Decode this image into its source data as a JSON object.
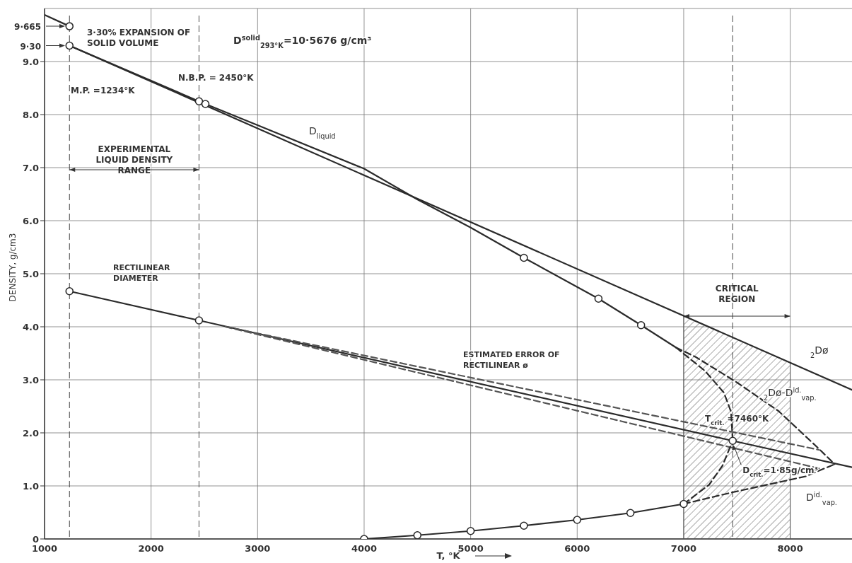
{
  "chart_data": {
    "type": "line",
    "xlabel": "T, °K",
    "ylabel": "DENSITY, g/cm3",
    "xlim": [
      1000,
      8580
    ],
    "ylim": [
      0,
      10
    ],
    "xticks": [
      1000,
      2000,
      3000,
      4000,
      5000,
      6000,
      7000,
      8000
    ],
    "yticks": [
      {
        "value": 0,
        "label": "0"
      },
      {
        "value": 1,
        "label": "1.0"
      },
      {
        "value": 2,
        "label": "2.0"
      },
      {
        "value": 3,
        "label": "3.0"
      },
      {
        "value": 4,
        "label": "4.0"
      },
      {
        "value": 5,
        "label": "5.0"
      },
      {
        "value": 6,
        "label": "6.0"
      },
      {
        "value": 7,
        "label": "7.0"
      },
      {
        "value": 8,
        "label": "8.0"
      },
      {
        "value": 9,
        "label": "9.0"
      }
    ],
    "grid": true,
    "marker": "none",
    "line_style": "solid",
    "series": [
      {
        "color": "#2b2b2b",
        "x": [
          1000,
          1234
        ],
        "values": [
          9.88,
          9.665
        ]
      },
      {
        "name": "$_{2}$Dø",
        "color": "#2b2b2b",
        "x": [
          1234,
          8580
        ],
        "values": [
          9.3,
          2.81
        ]
      },
      {
        "name": "D$_{liquid}$",
        "color": "#2b2b2b",
        "x": [
          1234,
          2450,
          2510,
          3000,
          4000,
          4500,
          5000,
          5500,
          6200,
          6600,
          6927
        ],
        "values": [
          9.3,
          8.25,
          8.2,
          7.8,
          6.98,
          6.4,
          5.87,
          5.3,
          4.53,
          4.03,
          3.61
        ]
      },
      {
        "color": "#2b2b2b",
        "line_style": "dashed",
        "x": [
          6927,
          7199,
          7377,
          7444,
          7460
        ],
        "values": [
          3.61,
          3.17,
          2.76,
          2.4,
          1.85
        ]
      },
      {
        "name": "$_{2}$Dø-D$^{id.}$$_{vap.}$",
        "color": "#2b2b2b",
        "line_style": "dashed",
        "x": [
          6927,
          7113,
          7500,
          7891,
          8248,
          8417
        ],
        "values": [
          3.61,
          3.43,
          2.95,
          2.41,
          1.74,
          1.41
        ]
      },
      {
        "name": "RECTILINEAR DIAMETER",
        "color": "#2b2b2b",
        "x": [
          1234,
          2450,
          7460,
          8580
        ],
        "values": [
          4.67,
          4.12,
          1.85,
          1.35
        ]
      },
      {
        "name": "ESTIMATED ERROR OF RECTILINEAR ø",
        "color": "#555555",
        "line_style": "dashed",
        "x": [
          2700,
          8270
        ],
        "values": [
          4.0,
          1.68
        ]
      },
      {
        "color": "#555555",
        "line_style": "dashed",
        "x": [
          2700,
          8270
        ],
        "values": [
          4.0,
          1.33
        ]
      },
      {
        "color": "#2b2b2b",
        "x": [
          4000,
          4500,
          5000,
          5500,
          6000,
          6500,
          7000
        ],
        "values": [
          0,
          0.07,
          0.15,
          0.25,
          0.36,
          0.49,
          0.66
        ]
      },
      {
        "name": "D$^{id.}$$_{vap.}$",
        "color": "#2b2b2b",
        "line_style": "dashed",
        "x": [
          7000,
          7460,
          8146,
          8417
        ],
        "values": [
          0.66,
          0.88,
          1.18,
          1.41
        ]
      },
      {
        "color": "#2b2b2b",
        "line_style": "dashed",
        "x": [
          7000,
          7238,
          7364,
          7460
        ],
        "values": [
          0.66,
          1.02,
          1.38,
          1.85
        ]
      },
      {
        "type": "scatter",
        "marker": "circle",
        "color": "#2b2b2b",
        "x": [
          1234,
          1234,
          2450,
          2510,
          5500,
          6200,
          6600,
          7460,
          4000,
          4500,
          5000,
          5500,
          6000,
          6500,
          7000,
          1234,
          2450
        ],
        "values": [
          9.665,
          9.3,
          8.25,
          8.2,
          5.3,
          4.53,
          4.03,
          1.85,
          0,
          0.07,
          0.15,
          0.25,
          0.36,
          0.49,
          0.66,
          4.67,
          4.12
        ]
      }
    ],
    "ref_lines": [
      {
        "axis": "x",
        "value": 1234,
        "label": "M.P. =1234°K",
        "line_style": "dashed",
        "color": "#444444"
      },
      {
        "axis": "x",
        "value": 2450,
        "label": "N.B.P. = 2450°K",
        "line_style": "dashed",
        "color": "#444444"
      },
      {
        "axis": "x",
        "value": 7460,
        "label": "T$_{crit.}$ =7460°K",
        "line_style": "dashed",
        "color": "#444444"
      }
    ],
    "bands": [
      {
        "axis": "x",
        "from": 7000,
        "to": 8000,
        "label": "CRITICAL REGION",
        "color": "#555555"
      }
    ],
    "annotations": [
      "3·30% EXPANSION OF SOLID VOLUME",
      "D$^{solid}$$_{293°K}$=10·5676 g/cm³",
      "EXPERIMENTAL LIQUID DENSITY RANGE",
      "9·665",
      "9·30",
      {
        "text": "D$_{crit.}$=1·85g/cm³",
        "x": 7460,
        "y": 1.85
      }
    ]
  }
}
